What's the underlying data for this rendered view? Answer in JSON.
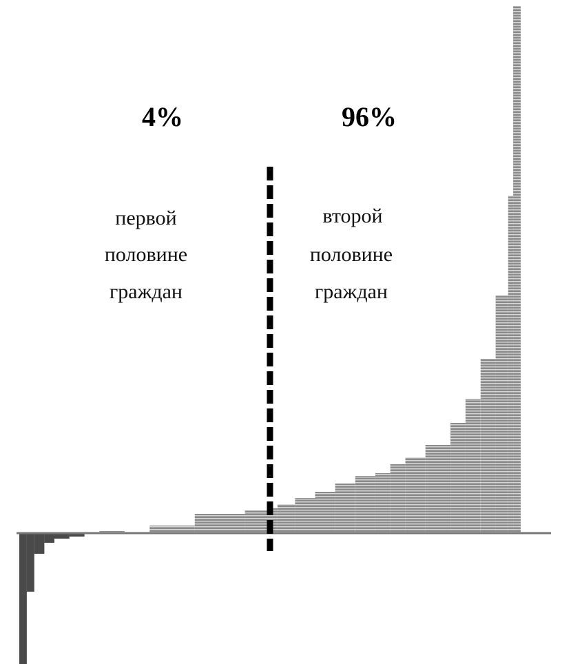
{
  "chart_data": {
    "type": "bar",
    "title": "",
    "xlabel": "",
    "ylabel": "",
    "grid": false,
    "legend": "none",
    "colors": {
      "bars": "#6e6e6e",
      "bars_negative": "#4a4a4a",
      "baseline": "#777777",
      "divider": "#000000"
    },
    "annotations": {
      "left_share": "4%",
      "right_share": "96%",
      "left_caption": [
        "первой",
        "половине",
        "граждан"
      ],
      "right_caption": [
        "второй",
        "половине",
        "граждан"
      ]
    },
    "divider_position": 0.5,
    "steps": [
      {
        "from": 0.0,
        "to": 0.015,
        "value": -225
      },
      {
        "from": 0.015,
        "to": 0.03,
        "value": -85
      },
      {
        "from": 0.03,
        "to": 0.05,
        "value": -30
      },
      {
        "from": 0.05,
        "to": 0.07,
        "value": -14
      },
      {
        "from": 0.07,
        "to": 0.1,
        "value": -8
      },
      {
        "from": 0.1,
        "to": 0.13,
        "value": -5
      },
      {
        "from": 0.13,
        "to": 0.16,
        "value": -1
      },
      {
        "from": 0.16,
        "to": 0.21,
        "value": 3
      },
      {
        "from": 0.21,
        "to": 0.26,
        "value": 1
      },
      {
        "from": 0.26,
        "to": 0.35,
        "value": 11
      },
      {
        "from": 0.35,
        "to": 0.45,
        "value": 28
      },
      {
        "from": 0.45,
        "to": 0.5,
        "value": 33
      },
      {
        "from": 0.5,
        "to": 0.515,
        "value": 36
      },
      {
        "from": 0.515,
        "to": 0.55,
        "value": 42
      },
      {
        "from": 0.55,
        "to": 0.59,
        "value": 51
      },
      {
        "from": 0.59,
        "to": 0.63,
        "value": 60
      },
      {
        "from": 0.63,
        "to": 0.67,
        "value": 72
      },
      {
        "from": 0.67,
        "to": 0.71,
        "value": 83
      },
      {
        "from": 0.71,
        "to": 0.74,
        "value": 87
      },
      {
        "from": 0.74,
        "to": 0.77,
        "value": 100
      },
      {
        "from": 0.77,
        "to": 0.81,
        "value": 110
      },
      {
        "from": 0.81,
        "to": 0.86,
        "value": 128
      },
      {
        "from": 0.86,
        "to": 0.89,
        "value": 160
      },
      {
        "from": 0.89,
        "to": 0.92,
        "value": 195
      },
      {
        "from": 0.92,
        "to": 0.95,
        "value": 253
      },
      {
        "from": 0.95,
        "to": 0.975,
        "value": 345
      },
      {
        "from": 0.975,
        "to": 0.985,
        "value": 490
      },
      {
        "from": 0.985,
        "to": 1.0,
        "value": 765
      }
    ]
  }
}
